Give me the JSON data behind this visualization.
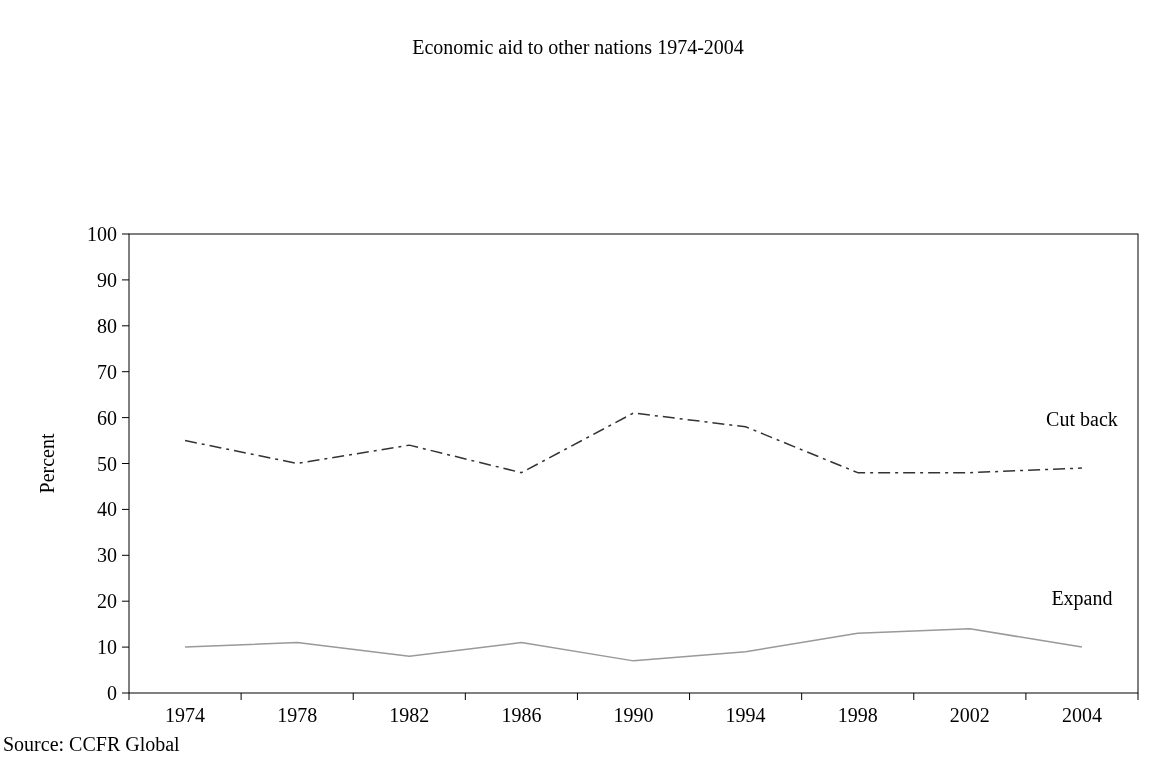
{
  "chart_data": {
    "type": "line",
    "title": "Economic aid to other nations 1974-2004",
    "ylabel": "Percent",
    "categories": [
      "1974",
      "1978",
      "1982",
      "1986",
      "1990",
      "1994",
      "1998",
      "2002",
      "2004"
    ],
    "series": [
      {
        "name": "Cut back",
        "color": "#333333",
        "line_style": "dashed",
        "values": [
          55,
          50,
          54,
          48,
          61,
          58,
          48,
          48,
          49
        ]
      },
      {
        "name": "Expand",
        "color": "#999999",
        "line_style": "solid",
        "values": [
          10,
          11,
          8,
          11,
          7,
          9,
          13,
          14,
          10
        ]
      }
    ],
    "ylim": [
      0,
      100
    ],
    "yticks": [
      0,
      10,
      20,
      30,
      40,
      50,
      60,
      70,
      80,
      90,
      100
    ],
    "grid": false,
    "legend": false,
    "marker": "none",
    "annotations": [
      "Source: CCFR Global"
    ]
  }
}
